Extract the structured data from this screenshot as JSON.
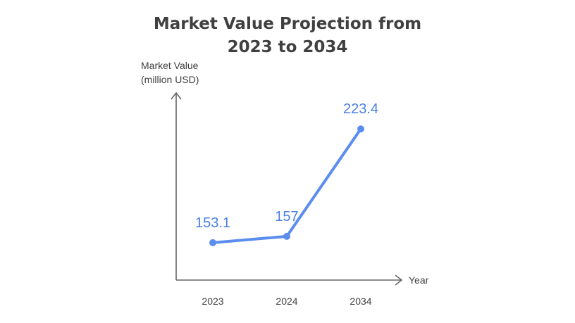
{
  "title_lines": [
    "Market Value Projection from",
    "2023 to 2034"
  ],
  "colors": {
    "line": "#5b8def",
    "value_label": "#4a7fe0",
    "axis": "#666666",
    "text": "#404040"
  },
  "chart_data": {
    "type": "line",
    "title": "Market Value Projection from 2023 to 2034",
    "ylabel_lines": [
      "Market Value",
      "(million USD)"
    ],
    "xlabel": "Year",
    "categories": [
      "2023",
      "2024",
      "2034"
    ],
    "series": [
      {
        "values": [
          153.1,
          157,
          223.4
        ]
      }
    ],
    "value_labels": [
      "153.1",
      "157",
      "223.4"
    ],
    "ylim": [
      130,
      240
    ],
    "grid": false,
    "legend": "none"
  }
}
